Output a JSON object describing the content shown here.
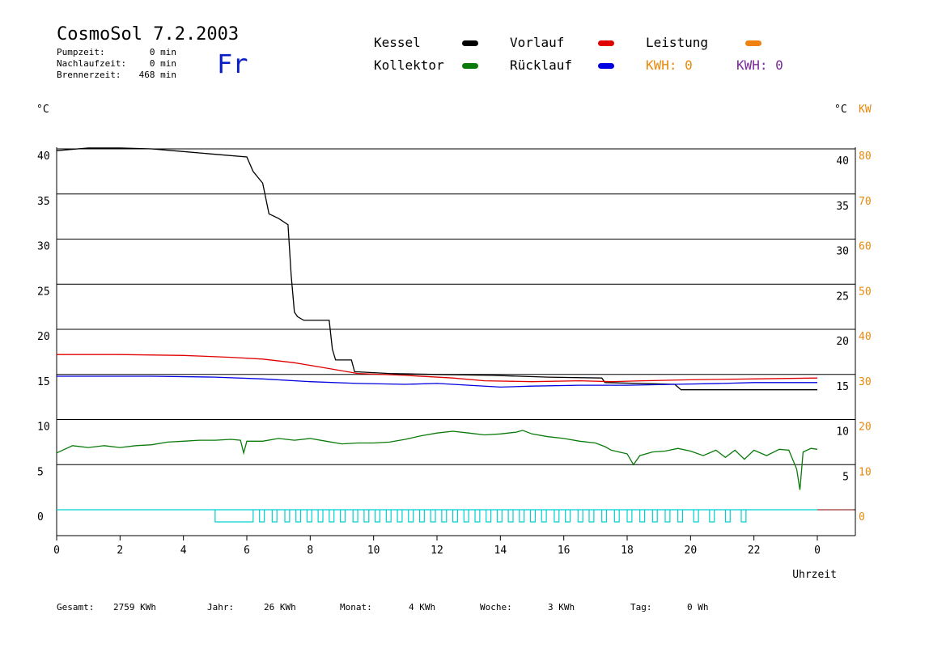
{
  "header": {
    "title": "CosmoSol 7.2.2003",
    "day": "Fr",
    "pumpzeit_label": "Pumpzeit:",
    "pumpzeit_value": "0 min",
    "nachlaufzeit_label": "Nachlaufzeit:",
    "nachlaufzeit_value": "0 min",
    "brennerzeit_label": "Brennerzeit:",
    "brennerzeit_value": "468 min"
  },
  "legend": {
    "kessel": "Kessel",
    "kollektor": "Kollektor",
    "vorlauf": "Vorlauf",
    "ruecklauf": "Rücklauf",
    "leistung": "Leistung",
    "kwh_orange": "KWH: 0",
    "kwh_purple": "KWH: 0"
  },
  "colors": {
    "kessel": "#000000",
    "kollektor": "#0a7a0a",
    "vorlauf": "#e00000",
    "ruecklauf": "#0000e0",
    "leistung": "#f08010",
    "pump": "#00d0d0",
    "kwh_orange": "#e8880c",
    "kwh_purple": "#7a2a9a"
  },
  "units": {
    "left": "°C",
    "right_c": "°C",
    "right_kw": "KW"
  },
  "footer": {
    "gesamt_label": "Gesamt:",
    "gesamt_value": "2759 KWh",
    "jahr_label": "Jahr:",
    "jahr_value": "26 KWh",
    "monat_label": "Monat:",
    "monat_value": "4 KWh",
    "woche_label": "Woche:",
    "woche_value": "3 KWh",
    "tag_label": "Tag:",
    "tag_value": "0 Wh"
  },
  "chart_data": {
    "type": "line",
    "xlabel": "Uhrzeit",
    "x_ticks": [
      "0",
      "2",
      "4",
      "6",
      "8",
      "10",
      "12",
      "14",
      "16",
      "18",
      "20",
      "22",
      "0"
    ],
    "xlim": [
      0,
      24
    ],
    "ylim": [
      -2,
      40
    ],
    "y_left_ticks": [
      0,
      5,
      10,
      15,
      20,
      25,
      30,
      35,
      40
    ],
    "y_right_c_ticks": [
      5,
      10,
      15,
      20,
      25,
      30,
      35,
      40
    ],
    "y_right_kw_ticks": [
      0,
      10,
      20,
      30,
      40,
      50,
      60,
      70,
      80
    ],
    "grid": true,
    "series": [
      {
        "name": "Kessel",
        "color": "#000000",
        "points": [
          [
            0,
            39.8
          ],
          [
            1,
            40.1
          ],
          [
            2,
            40.1
          ],
          [
            3,
            40.0
          ],
          [
            4,
            39.7
          ],
          [
            5,
            39.4
          ],
          [
            6,
            39.1
          ],
          [
            6.2,
            37.5
          ],
          [
            6.5,
            36.2
          ],
          [
            6.6,
            34.5
          ],
          [
            6.7,
            32.8
          ],
          [
            7.0,
            32.3
          ],
          [
            7.3,
            31.6
          ],
          [
            7.4,
            26
          ],
          [
            7.5,
            21.9
          ],
          [
            7.6,
            21.4
          ],
          [
            7.8,
            21.0
          ],
          [
            8.6,
            21.0
          ],
          [
            8.7,
            17.8
          ],
          [
            8.8,
            16.6
          ],
          [
            9.3,
            16.6
          ],
          [
            9.4,
            15.3
          ],
          [
            10.5,
            15.1
          ],
          [
            12,
            15.0
          ],
          [
            13.7,
            14.9
          ],
          [
            15.5,
            14.7
          ],
          [
            17.2,
            14.6
          ],
          [
            17.3,
            14.1
          ],
          [
            19.5,
            13.9
          ],
          [
            19.7,
            13.3
          ],
          [
            21,
            13.3
          ],
          [
            24,
            13.3
          ]
        ]
      },
      {
        "name": "Vorlauf",
        "color": "#e00000",
        "points": [
          [
            0,
            17.2
          ],
          [
            2,
            17.2
          ],
          [
            4,
            17.1
          ],
          [
            5.5,
            16.9
          ],
          [
            6.5,
            16.7
          ],
          [
            7.5,
            16.3
          ],
          [
            8.5,
            15.7
          ],
          [
            9.5,
            15.1
          ],
          [
            11,
            14.9
          ],
          [
            12.5,
            14.6
          ],
          [
            13.5,
            14.3
          ],
          [
            15,
            14.2
          ],
          [
            16.5,
            14.3
          ],
          [
            17.5,
            14.2
          ],
          [
            18.5,
            14.3
          ],
          [
            20,
            14.4
          ],
          [
            22,
            14.5
          ],
          [
            24,
            14.6
          ]
        ]
      },
      {
        "name": "Rücklauf",
        "color": "#0000e0",
        "points": [
          [
            0,
            14.8
          ],
          [
            3,
            14.8
          ],
          [
            5,
            14.7
          ],
          [
            6.5,
            14.5
          ],
          [
            8,
            14.2
          ],
          [
            9.5,
            14.0
          ],
          [
            11,
            13.9
          ],
          [
            12,
            14.0
          ],
          [
            13,
            13.8
          ],
          [
            14,
            13.6
          ],
          [
            15,
            13.7
          ],
          [
            16.5,
            13.8
          ],
          [
            18,
            13.8
          ],
          [
            19.5,
            13.9
          ],
          [
            21,
            14.0
          ],
          [
            22,
            14.1
          ],
          [
            24,
            14.1
          ]
        ]
      },
      {
        "name": "Kollektor",
        "color": "#0a7a0a",
        "points": [
          [
            0,
            6.3
          ],
          [
            0.5,
            7.1
          ],
          [
            1,
            6.9
          ],
          [
            1.5,
            7.1
          ],
          [
            2,
            6.9
          ],
          [
            2.5,
            7.1
          ],
          [
            3,
            7.2
          ],
          [
            3.5,
            7.5
          ],
          [
            4,
            7.6
          ],
          [
            4.5,
            7.7
          ],
          [
            5,
            7.7
          ],
          [
            5.5,
            7.8
          ],
          [
            5.8,
            7.7
          ],
          [
            5.9,
            6.3
          ],
          [
            6.0,
            7.6
          ],
          [
            6.5,
            7.6
          ],
          [
            7,
            7.9
          ],
          [
            7.5,
            7.7
          ],
          [
            8,
            7.9
          ],
          [
            8.5,
            7.6
          ],
          [
            9,
            7.3
          ],
          [
            9.5,
            7.4
          ],
          [
            10,
            7.4
          ],
          [
            10.5,
            7.5
          ],
          [
            11,
            7.8
          ],
          [
            11.5,
            8.2
          ],
          [
            12,
            8.5
          ],
          [
            12.5,
            8.7
          ],
          [
            13,
            8.5
          ],
          [
            13.5,
            8.3
          ],
          [
            14,
            8.4
          ],
          [
            14.5,
            8.6
          ],
          [
            14.7,
            8.8
          ],
          [
            15,
            8.4
          ],
          [
            15.5,
            8.1
          ],
          [
            16,
            7.9
          ],
          [
            16.5,
            7.6
          ],
          [
            17,
            7.4
          ],
          [
            17.3,
            7.0
          ],
          [
            17.5,
            6.6
          ],
          [
            18,
            6.2
          ],
          [
            18.2,
            5.0
          ],
          [
            18.4,
            6.0
          ],
          [
            18.8,
            6.4
          ],
          [
            19.2,
            6.5
          ],
          [
            19.6,
            6.8
          ],
          [
            20,
            6.5
          ],
          [
            20.4,
            6.0
          ],
          [
            20.8,
            6.6
          ],
          [
            21.1,
            5.8
          ],
          [
            21.4,
            6.6
          ],
          [
            21.7,
            5.6
          ],
          [
            22,
            6.6
          ],
          [
            22.4,
            6.0
          ],
          [
            22.8,
            6.7
          ],
          [
            23.1,
            6.6
          ],
          [
            23.35,
            4.5
          ],
          [
            23.45,
            2.2
          ],
          [
            23.55,
            6.4
          ],
          [
            23.8,
            6.8
          ],
          [
            24,
            6.7
          ]
        ]
      },
      {
        "name": "Leistung",
        "color": "#f08010",
        "points": []
      }
    ],
    "pump_on_segments": [
      [
        5.0,
        6.2
      ],
      [
        6.4,
        6.55
      ],
      [
        6.8,
        6.95
      ],
      [
        7.2,
        7.35
      ],
      [
        7.55,
        7.7
      ],
      [
        7.9,
        8.05
      ],
      [
        8.25,
        8.4
      ],
      [
        8.6,
        8.75
      ],
      [
        8.95,
        9.1
      ],
      [
        9.35,
        9.5
      ],
      [
        9.7,
        9.85
      ],
      [
        10.05,
        10.2
      ],
      [
        10.4,
        10.55
      ],
      [
        10.75,
        10.9
      ],
      [
        11.1,
        11.25
      ],
      [
        11.45,
        11.6
      ],
      [
        11.8,
        11.95
      ],
      [
        12.15,
        12.3
      ],
      [
        12.5,
        12.65
      ],
      [
        12.85,
        13.0
      ],
      [
        13.2,
        13.35
      ],
      [
        13.55,
        13.7
      ],
      [
        13.9,
        14.05
      ],
      [
        14.25,
        14.4
      ],
      [
        14.6,
        14.75
      ],
      [
        14.95,
        15.1
      ],
      [
        15.3,
        15.45
      ],
      [
        15.7,
        15.85
      ],
      [
        16.05,
        16.2
      ],
      [
        16.45,
        16.6
      ],
      [
        16.8,
        16.95
      ],
      [
        17.2,
        17.35
      ],
      [
        17.6,
        17.75
      ],
      [
        18.0,
        18.15
      ],
      [
        18.4,
        18.55
      ],
      [
        18.8,
        18.95
      ],
      [
        19.2,
        19.35
      ],
      [
        19.6,
        19.75
      ],
      [
        20.1,
        20.25
      ],
      [
        20.6,
        20.75
      ],
      [
        21.1,
        21.25
      ],
      [
        21.6,
        21.75
      ]
    ]
  }
}
